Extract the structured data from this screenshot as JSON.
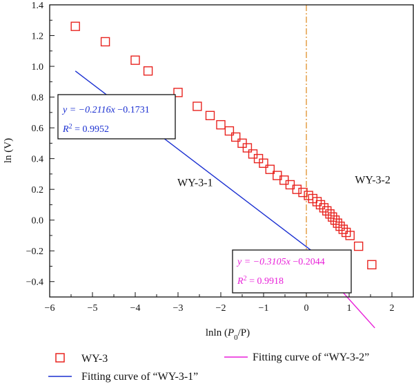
{
  "chart_data": {
    "type": "scatter",
    "xlabel_prefix": "lnln (",
    "xlabel_var": "P",
    "xlabel_sub": "0",
    "xlabel_suffix": "/P)",
    "ylabel": "ln (V)",
    "xlim": [
      -6,
      2.5
    ],
    "ylim": [
      -0.5,
      1.4
    ],
    "x_ticks": [
      -6,
      -5,
      -4,
      -3,
      -2,
      -1,
      0,
      1,
      2
    ],
    "x_tick_labels": [
      "−6",
      "−5",
      "−4",
      "−3",
      "−2",
      "−1",
      "0",
      "1",
      "2"
    ],
    "y_ticks": [
      -0.4,
      -0.2,
      0.0,
      0.2,
      0.4,
      0.6,
      0.8,
      1.0,
      1.2,
      1.4
    ],
    "y_tick_labels": [
      "−0.4",
      "−0.2",
      "0.0",
      "0.2",
      "0.4",
      "0.6",
      "0.8",
      "1.0",
      "1.2",
      "1.4"
    ],
    "grid": false,
    "series": [
      {
        "name": "WY-3",
        "kind": "scatter",
        "color": "#e8231f",
        "marker": "open-square",
        "x": [
          -5.4,
          -4.7,
          -4.0,
          -3.7,
          -3.0,
          -2.55,
          -2.25,
          -2.0,
          -1.8,
          -1.65,
          -1.5,
          -1.38,
          -1.25,
          -1.12,
          -1.0,
          -0.85,
          -0.68,
          -0.52,
          -0.38,
          -0.22,
          -0.08,
          0.05,
          0.15,
          0.25,
          0.33,
          0.41,
          0.48,
          0.55,
          0.61,
          0.67,
          0.73,
          0.79,
          0.86,
          0.93,
          1.02,
          1.22,
          1.53
        ],
        "y": [
          1.26,
          1.16,
          1.04,
          0.97,
          0.83,
          0.74,
          0.68,
          0.62,
          0.58,
          0.54,
          0.5,
          0.47,
          0.43,
          0.4,
          0.37,
          0.33,
          0.29,
          0.26,
          0.23,
          0.2,
          0.18,
          0.16,
          0.14,
          0.12,
          0.1,
          0.08,
          0.06,
          0.04,
          0.02,
          0.0,
          -0.02,
          -0.04,
          -0.06,
          -0.08,
          -0.1,
          -0.17,
          -0.29
        ]
      },
      {
        "name": "Fitting curve of “WY-3-1”",
        "kind": "line",
        "color": "#1a2fd1",
        "slope": -0.2116,
        "intercept": -0.1731,
        "x": [
          -5.4,
          0.15
        ]
      },
      {
        "name": "Fitting curve of “WY-3-2”",
        "kind": "line",
        "color": "#e81fd8",
        "slope": -0.3105,
        "intercept": -0.2044,
        "x": [
          0.15,
          1.6
        ]
      }
    ],
    "vline": {
      "x": 0,
      "color": "#e0902a",
      "style": "dash-dot"
    },
    "region_labels": [
      {
        "text": "WY-3-1",
        "x": -2.6,
        "y": 0.22
      },
      {
        "text": "WY-3-2",
        "x": 1.55,
        "y": 0.24
      }
    ],
    "annotations": [
      {
        "color": "#1a2fd1",
        "eq_prefix": "y = −0.2116",
        "eq_var": "x",
        "eq_suffix": " −0.1731",
        "r2_prefix": "R",
        "r2_sup": "2",
        "r2_value": " = 0.9952"
      },
      {
        "color": "#e81fd8",
        "eq_prefix": "y = −0.3105",
        "eq_var": "x",
        "eq_suffix": " −0.2044",
        "r2_prefix": "R",
        "r2_sup": "2",
        "r2_value": " = 0.9918"
      }
    ],
    "legend_placement": "bottom"
  }
}
